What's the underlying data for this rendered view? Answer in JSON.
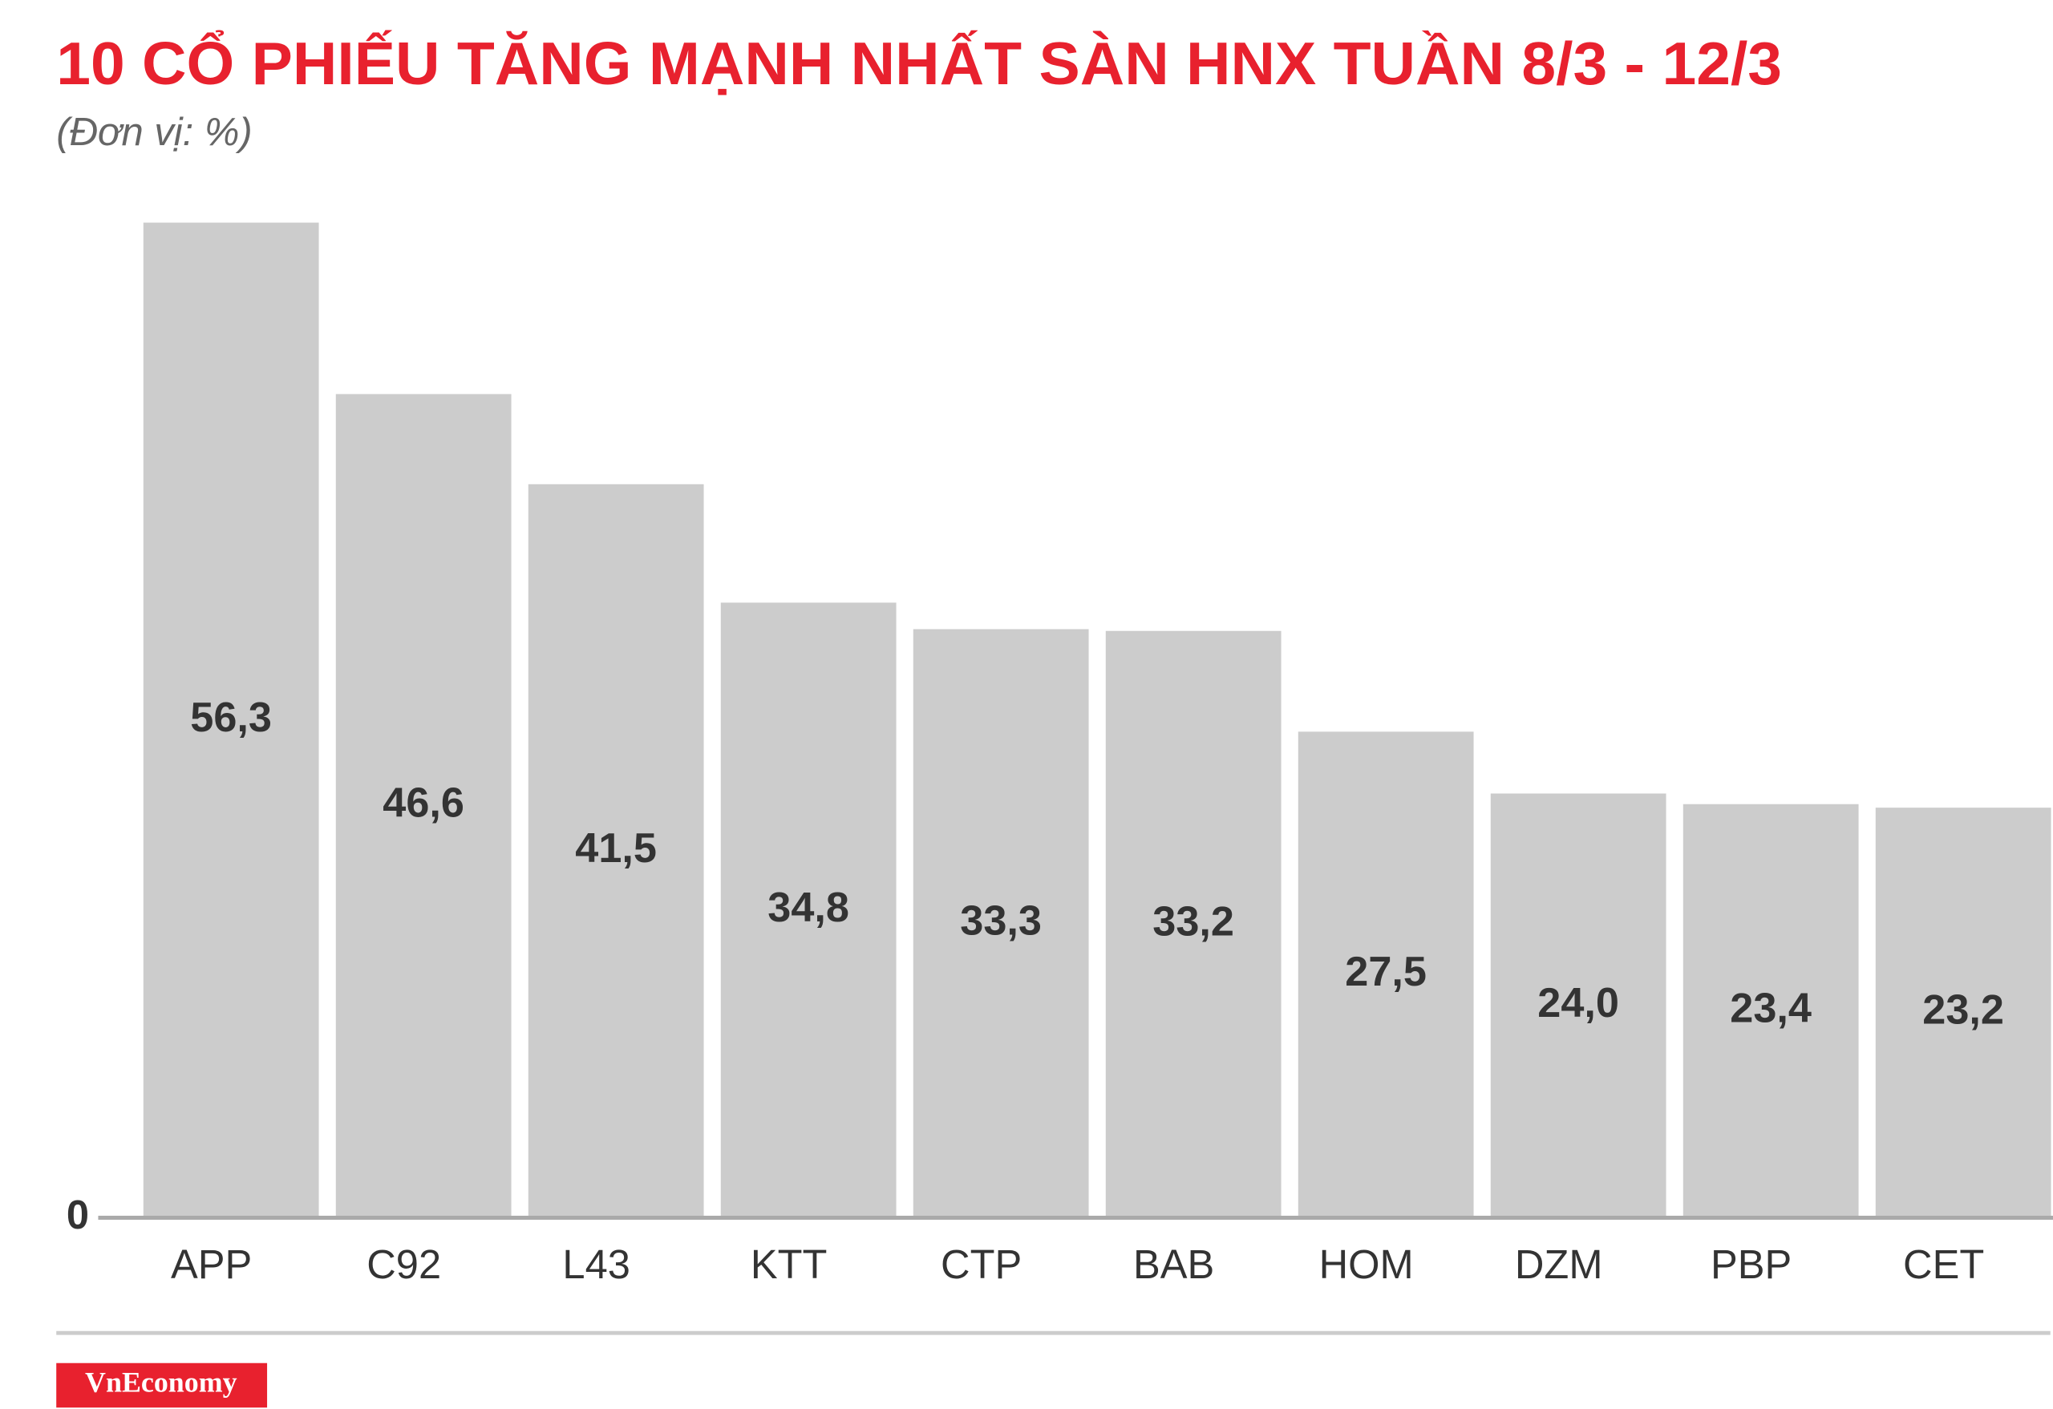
{
  "chart_data": {
    "type": "bar",
    "title": "10 CỔ PHIẾU TĂNG MẠNH NHẤT SÀN HNX TUẦN 8/3 - 12/3",
    "subtitle": "(Đơn vị: %)",
    "categories": [
      "APP",
      "C92",
      "L43",
      "KTT",
      "CTP",
      "BAB",
      "HOM",
      "DZM",
      "PBP",
      "CET"
    ],
    "values": [
      56.3,
      46.6,
      41.5,
      34.8,
      33.3,
      33.2,
      27.5,
      24.0,
      23.4,
      23.2
    ],
    "value_labels": [
      "56,3",
      "46,6",
      "41,5",
      "34,8",
      "33,3",
      "33,2",
      "27,5",
      "24,0",
      "23,4",
      "23,2"
    ],
    "color": "#cccccc",
    "ylim": [
      0,
      60
    ],
    "yticks": [
      0
    ],
    "grid": false
  },
  "footer": {
    "brand": "VnEconomy"
  }
}
